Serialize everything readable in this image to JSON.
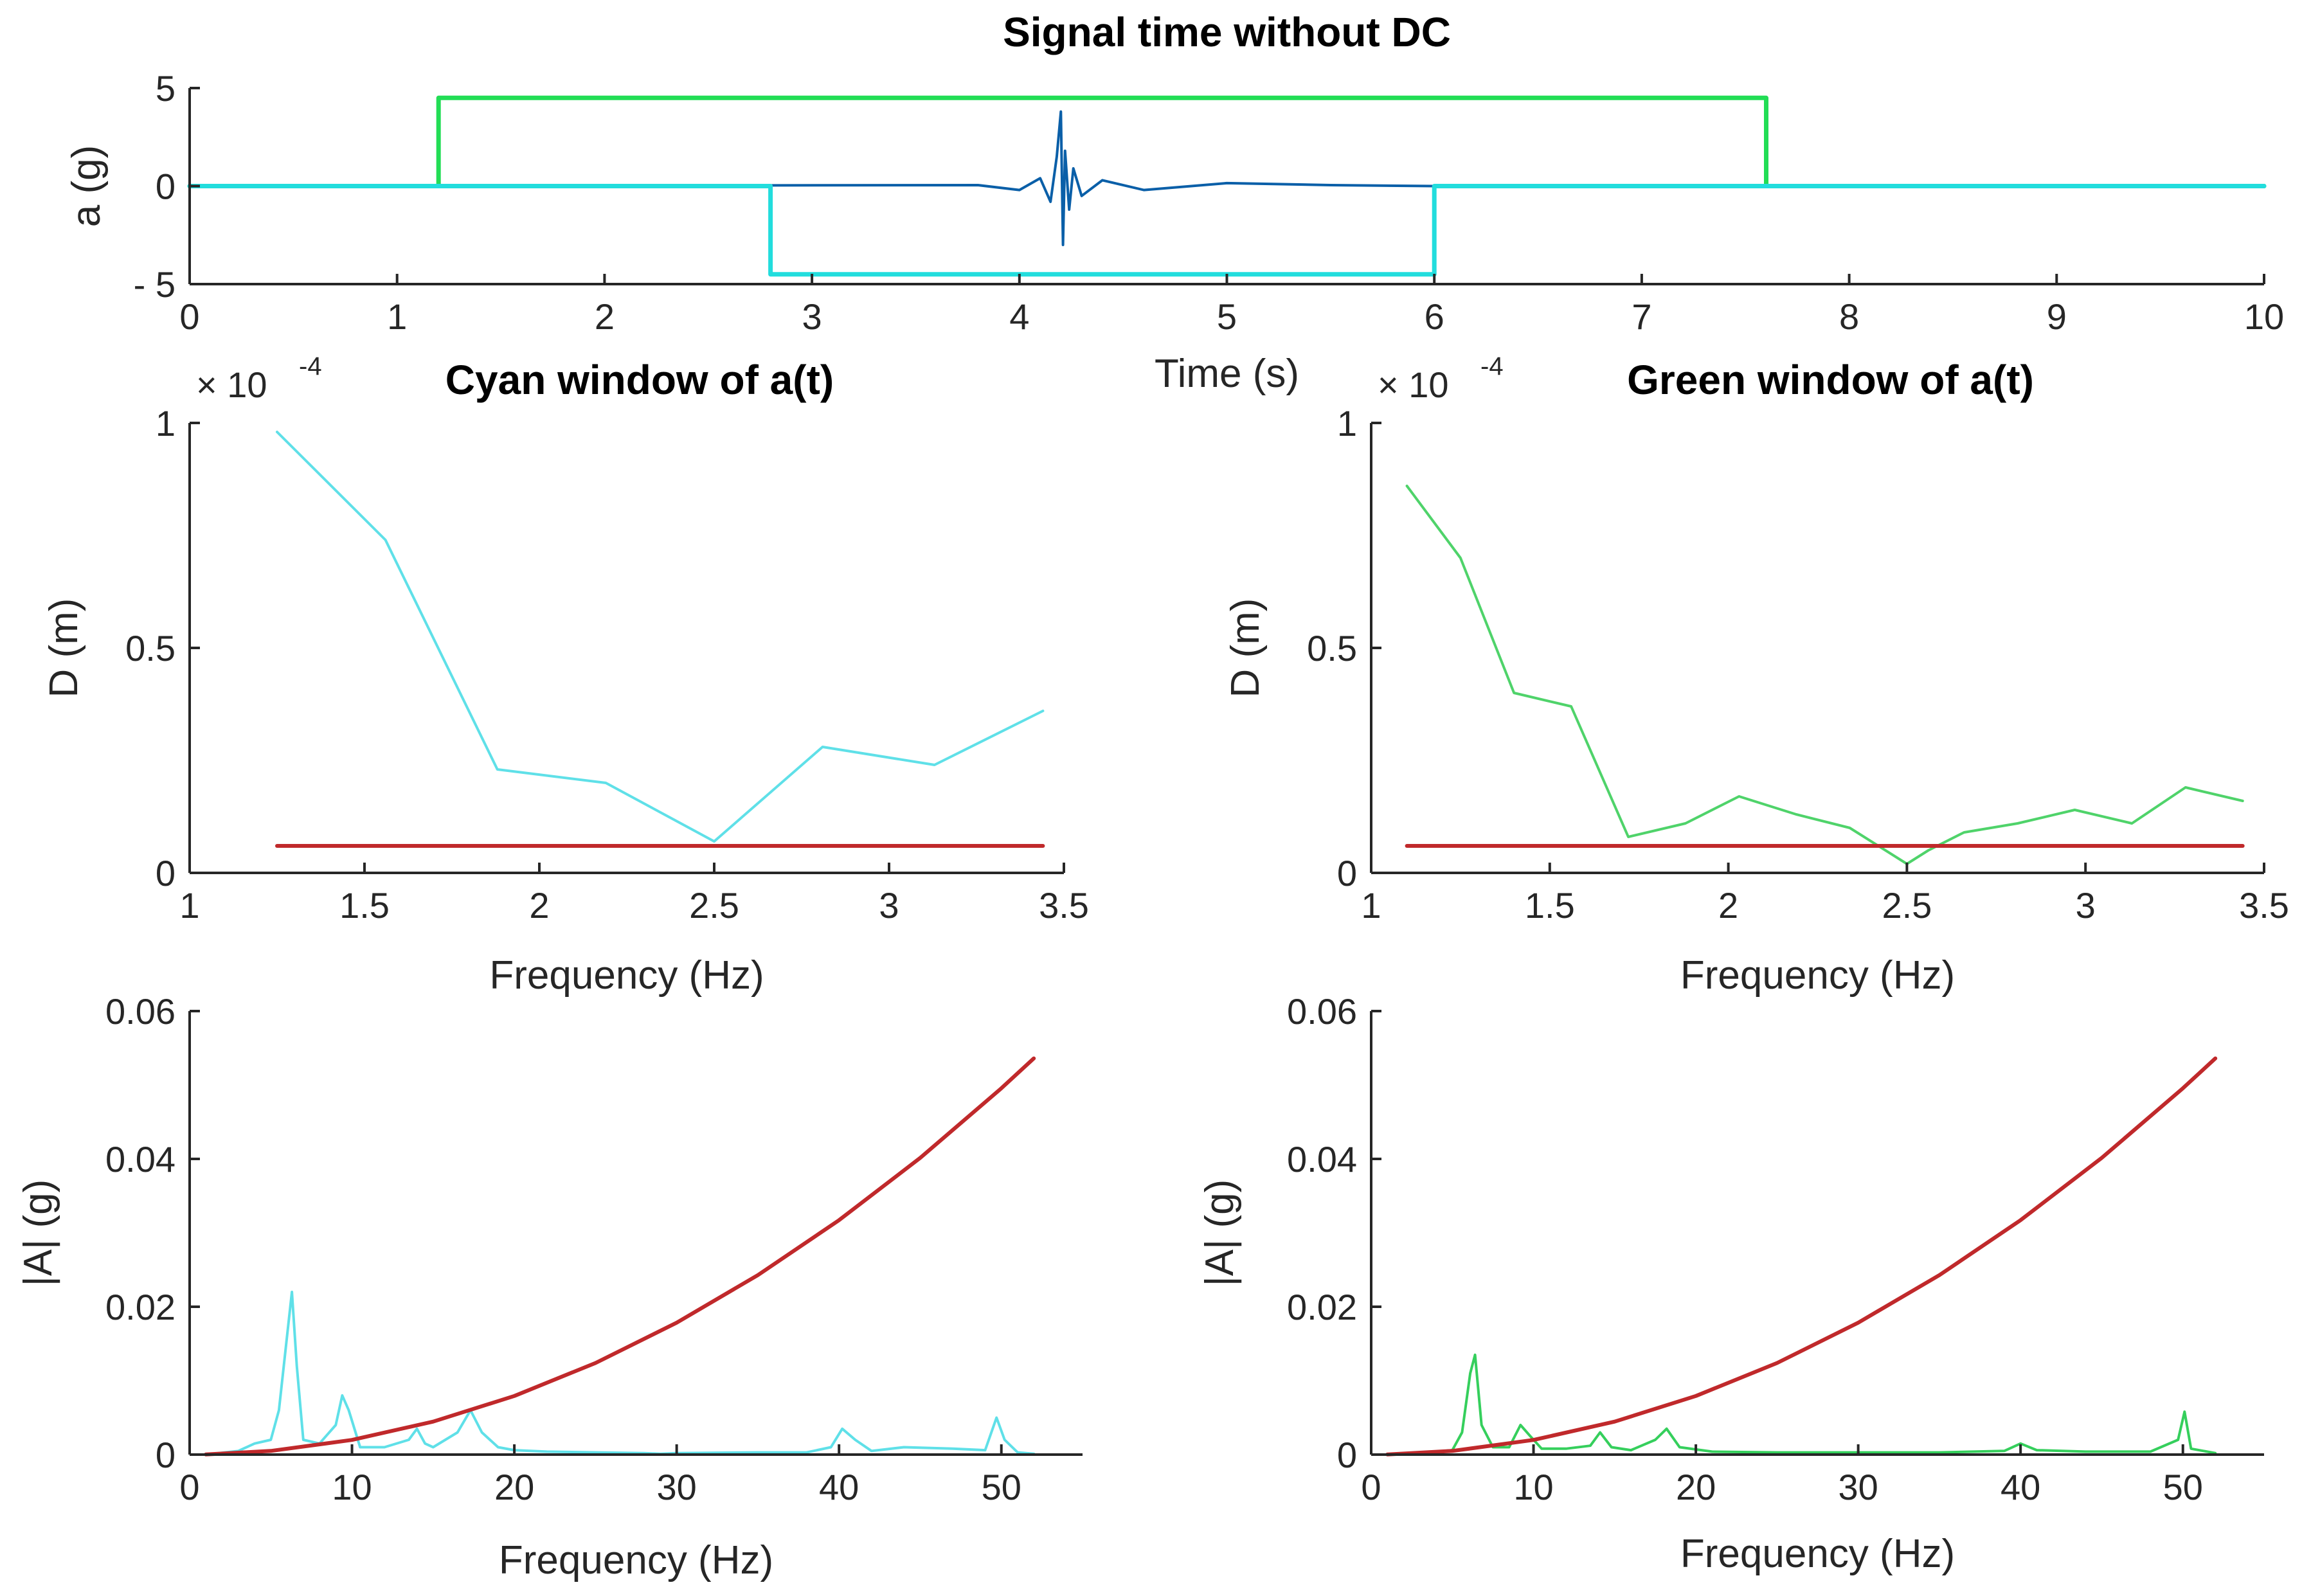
{
  "chart_data": [
    {
      "id": "time",
      "type": "line",
      "title": "Signal time without DC",
      "xlabel": "Time (s)",
      "ylabel": "a (g)",
      "xlim": [
        0,
        10
      ],
      "ylim": [
        -5,
        5
      ],
      "xticks": [
        0,
        1,
        2,
        3,
        4,
        5,
        6,
        7,
        8,
        9,
        10
      ],
      "xtick_labels": [
        "0",
        "1",
        "2",
        "3",
        "4",
        "5",
        "6",
        "7",
        "8",
        "9",
        "10"
      ],
      "yticks": [
        -5,
        0,
        5
      ],
      "ytick_labels": [
        "- 5",
        "0",
        "5"
      ],
      "series": [
        {
          "color": "#0a5fa8",
          "kind": "signal",
          "x": [
            0,
            3.8,
            4.0,
            4.1,
            4.15,
            4.18,
            4.2,
            4.21,
            4.22,
            4.24,
            4.26,
            4.3,
            4.4,
            4.6,
            5.0,
            5.5,
            6.0,
            10
          ],
          "y": [
            0,
            0.05,
            -0.2,
            0.4,
            -0.8,
            1.5,
            3.8,
            -3.0,
            1.8,
            -1.2,
            0.9,
            -0.5,
            0.3,
            -0.2,
            0.15,
            0.05,
            0,
            0
          ]
        },
        {
          "color": "#22dd55",
          "kind": "window",
          "x": [
            0,
            1.2,
            1.2,
            7.6,
            7.6,
            10
          ],
          "y": [
            0,
            0,
            4.5,
            4.5,
            0,
            0
          ]
        },
        {
          "color": "#22dddd",
          "kind": "window",
          "x": [
            0,
            2.8,
            2.8,
            6.0,
            6.0,
            10
          ],
          "y": [
            0,
            0,
            -4.5,
            -4.5,
            0,
            0
          ]
        }
      ]
    },
    {
      "id": "cyanD",
      "type": "line",
      "title": "Cyan window of a(t)",
      "xlabel": "Frequency (Hz)",
      "ylabel": "D (m)",
      "y_multiplier": {
        "base": "× 10",
        "exponent": "-4"
      },
      "xlim": [
        1,
        3.5
      ],
      "ylim": [
        0,
        1
      ],
      "xticks": [
        1,
        1.5,
        2,
        2.5,
        3,
        3.5
      ],
      "xtick_labels": [
        "1",
        "1.5",
        "2",
        "2.5",
        "3",
        "3.5"
      ],
      "yticks": [
        0,
        0.5,
        1
      ],
      "ytick_labels": [
        "0",
        "0.5",
        "1"
      ],
      "series": [
        {
          "color": "#5fe0e8",
          "x": [
            1.25,
            1.56,
            1.88,
            2.19,
            2.5,
            2.81,
            3.13,
            3.44
          ],
          "y": [
            0.98,
            0.74,
            0.23,
            0.2,
            0.07,
            0.28,
            0.24,
            0.36
          ]
        },
        {
          "color": "#c0292b",
          "x": [
            1.25,
            3.44
          ],
          "y": [
            0.06,
            0.06
          ]
        }
      ]
    },
    {
      "id": "greenD",
      "type": "line",
      "title": "Green window of a(t)",
      "xlabel": "Frequency (Hz)",
      "ylabel": "D (m)",
      "y_multiplier": {
        "base": "× 10",
        "exponent": "-4"
      },
      "xlim": [
        1,
        3.5
      ],
      "ylim": [
        0,
        1
      ],
      "xticks": [
        1,
        1.5,
        2,
        2.5,
        3,
        3.5
      ],
      "xtick_labels": [
        "1",
        "1.5",
        "2",
        "2.5",
        "3",
        "3.5"
      ],
      "yticks": [
        0,
        0.5,
        1
      ],
      "ytick_labels": [
        "0",
        "0.5",
        "1"
      ],
      "series": [
        {
          "color": "#4fd36a",
          "x": [
            1.1,
            1.25,
            1.4,
            1.56,
            1.72,
            1.88,
            2.03,
            2.19,
            2.34,
            2.5,
            2.56,
            2.66,
            2.81,
            2.97,
            3.13,
            3.28,
            3.44
          ],
          "y": [
            0.86,
            0.7,
            0.4,
            0.37,
            0.08,
            0.11,
            0.17,
            0.13,
            0.1,
            0.02,
            0.05,
            0.09,
            0.11,
            0.14,
            0.11,
            0.19,
            0.16
          ]
        },
        {
          "color": "#c0292b",
          "x": [
            1.1,
            3.44
          ],
          "y": [
            0.06,
            0.06
          ]
        }
      ]
    },
    {
      "id": "cyanA",
      "type": "line",
      "title": "",
      "xlabel": "Frequency (Hz)",
      "ylabel": "|A| (g)",
      "xlim": [
        0,
        55
      ],
      "ylim": [
        0,
        0.06
      ],
      "xticks": [
        0,
        10,
        20,
        30,
        40,
        50
      ],
      "xtick_labels": [
        "0",
        "10",
        "20",
        "30",
        "40",
        "50"
      ],
      "yticks": [
        0,
        0.02,
        0.04,
        0.06
      ],
      "ytick_labels": [
        "0",
        "0.02",
        "0.04",
        "0.06"
      ],
      "series": [
        {
          "color": "#5fe0e8",
          "x": [
            1,
            3,
            4,
            5,
            5.5,
            6,
            6.3,
            6.6,
            7,
            8,
            9,
            9.4,
            9.8,
            10.5,
            12,
            13.5,
            14,
            14.5,
            15,
            16.5,
            17.3,
            18,
            19,
            20,
            22,
            25,
            28,
            29,
            30,
            35,
            38,
            39.5,
            40.2,
            41,
            42,
            44,
            47,
            49,
            49.7,
            50.2,
            51,
            52
          ],
          "y": [
            0,
            0.0005,
            0.0015,
            0.002,
            0.006,
            0.016,
            0.022,
            0.012,
            0.002,
            0.0015,
            0.004,
            0.008,
            0.006,
            0.001,
            0.001,
            0.002,
            0.0035,
            0.0015,
            0.001,
            0.003,
            0.006,
            0.003,
            0.001,
            0.0006,
            0.0004,
            0.0003,
            0.0002,
            0.0001,
            0.0002,
            0.0003,
            0.0003,
            0.001,
            0.0035,
            0.002,
            0.0005,
            0.001,
            0.0008,
            0.0006,
            0.005,
            0.002,
            0.0003,
            0.0001
          ]
        },
        {
          "color": "#c0292b",
          "kind": "curve",
          "x": [
            1,
            5,
            10,
            15,
            20,
            25,
            30,
            35,
            40,
            45,
            50,
            52
          ],
          "y": [
            2e-05,
            0.0005,
            0.00198,
            0.00446,
            0.00793,
            0.01239,
            0.01784,
            0.02428,
            0.03171,
            0.04014,
            0.04956,
            0.0536
          ]
        }
      ]
    },
    {
      "id": "greenA",
      "type": "line",
      "title": "",
      "xlabel": "Frequency (Hz)",
      "ylabel": "|A| (g)",
      "xlim": [
        0,
        55
      ],
      "ylim": [
        0,
        0.06
      ],
      "xticks": [
        0,
        10,
        20,
        30,
        40,
        50
      ],
      "xtick_labels": [
        "0",
        "10",
        "20",
        "30",
        "40",
        "50"
      ],
      "yticks": [
        0,
        0.02,
        0.04,
        0.06
      ],
      "ytick_labels": [
        "0",
        "0.02",
        "0.04",
        "0.06"
      ],
      "series": [
        {
          "color": "#35cf5c",
          "x": [
            1,
            3,
            5,
            5.6,
            6.1,
            6.4,
            6.8,
            7.5,
            8.5,
            9.2,
            9.8,
            10.5,
            12,
            13.5,
            14.1,
            14.8,
            16,
            17.5,
            18.2,
            19,
            21,
            25,
            30,
            35,
            39,
            40,
            41,
            44,
            48,
            49.7,
            50.1,
            50.5,
            52
          ],
          "y": [
            0,
            0.0002,
            0.0006,
            0.003,
            0.011,
            0.0135,
            0.004,
            0.001,
            0.001,
            0.004,
            0.0025,
            0.0008,
            0.0008,
            0.0012,
            0.003,
            0.001,
            0.0006,
            0.002,
            0.0035,
            0.001,
            0.0004,
            0.0003,
            0.0003,
            0.0003,
            0.0005,
            0.0015,
            0.0006,
            0.0004,
            0.0004,
            0.002,
            0.0058,
            0.0008,
            0.0002
          ]
        },
        {
          "color": "#c0292b",
          "kind": "curve",
          "x": [
            1,
            5,
            10,
            15,
            20,
            25,
            30,
            35,
            40,
            45,
            50,
            52
          ],
          "y": [
            2e-05,
            0.0005,
            0.00198,
            0.00446,
            0.00793,
            0.01239,
            0.01784,
            0.02428,
            0.03171,
            0.04014,
            0.04956,
            0.0536
          ]
        }
      ]
    }
  ]
}
